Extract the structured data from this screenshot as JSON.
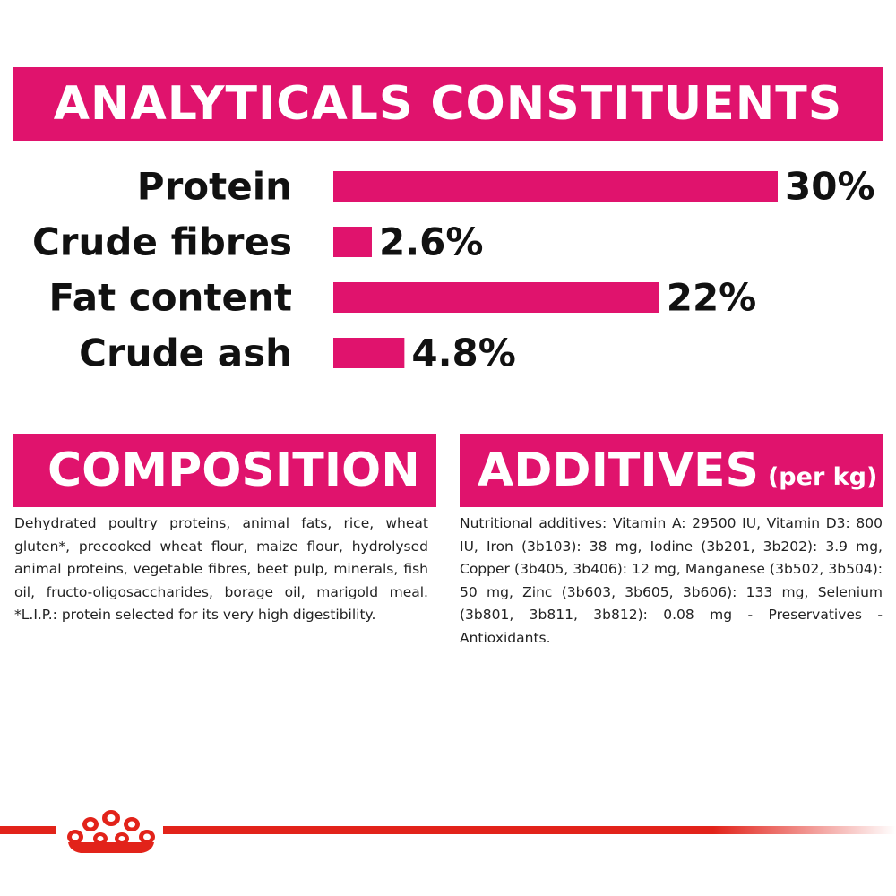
{
  "header": {
    "title": "ANALYTICALS CONSTITUENTS"
  },
  "chart_data": {
    "type": "bar",
    "orientation": "horizontal",
    "categories": [
      "Protein",
      "Crude fibres",
      "Fat content",
      "Crude ash"
    ],
    "values": [
      30,
      2.6,
      22,
      4.8
    ],
    "value_labels": [
      "30%",
      "2.6%",
      "22%",
      "4.8%"
    ],
    "unit": "%",
    "bar_color": "#e0136d",
    "xlim": [
      0,
      30
    ],
    "grid": false,
    "legend": "none",
    "title": "ANALYTICALS CONSTITUENTS"
  },
  "composition": {
    "title": "COMPOSITION",
    "text": "Dehydrated poultry proteins, animal fats, rice, wheat gluten*, precooked wheat flour, maize flour, hydrolysed animal proteins, vegetable fibres, beet pulp, minerals, fish oil, fructo-oligosaccharides, borage oil, marigold meal. *L.I.P.: protein selected for its very high digestibility."
  },
  "additives": {
    "title": "ADDITIVES",
    "subtitle": "(per kg)",
    "text": "Nutritional additives: Vitamin A: 29500 IU, Vitamin D3: 800 IU, Iron (3b103): 38 mg, Iodine (3b201, 3b202): 3.9 mg, Copper (3b405, 3b406): 12 mg, Manganese (3b502, 3b504): 50 mg, Zinc (3b603, 3b605, 3b606): 133 mg, Selenium (3b801, 3b811, 3b812): 0.08 mg - Preservatives - Antioxidants."
  },
  "footer": {
    "line_color": "#e2231a",
    "logo": "royal-canin-crown-logo"
  }
}
